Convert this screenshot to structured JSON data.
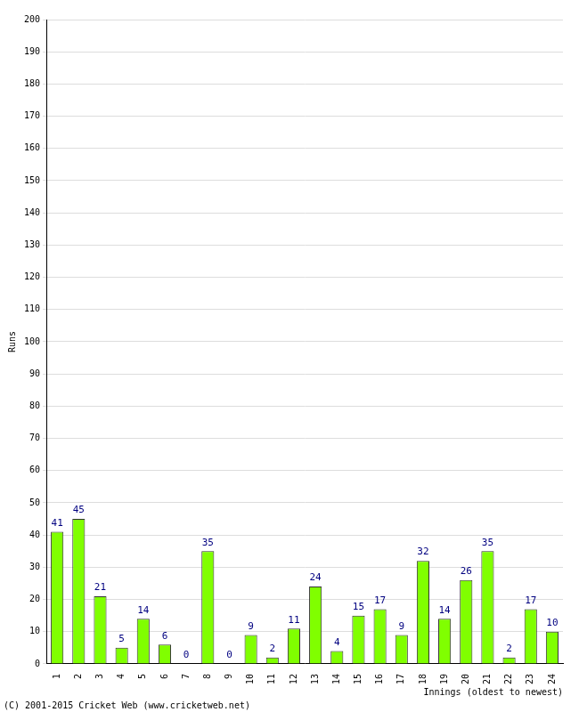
{
  "chart_data": {
    "type": "bar",
    "categories": [
      "1",
      "2",
      "3",
      "4",
      "5",
      "6",
      "7",
      "8",
      "9",
      "10",
      "11",
      "12",
      "13",
      "14",
      "15",
      "16",
      "17",
      "18",
      "19",
      "20",
      "21",
      "22",
      "23",
      "24"
    ],
    "values": [
      41,
      45,
      21,
      5,
      14,
      6,
      0,
      35,
      0,
      9,
      2,
      11,
      24,
      4,
      15,
      17,
      9,
      32,
      14,
      26,
      35,
      2,
      17,
      10
    ],
    "color": "#80ff00",
    "x_label": "Innings (oldest to newest)",
    "y_label": "Runs",
    "annotations": [
      "(C) 2001-2015 Cricket Web (www.cricketweb.net)"
    ],
    "ylim": [
      0,
      200
    ],
    "yticks": [
      0,
      10,
      20,
      30,
      40,
      50,
      60,
      70,
      80,
      90,
      100,
      110,
      120,
      130,
      140,
      150,
      160,
      170,
      180,
      190,
      200
    ],
    "grid": true,
    "data_labels": true
  }
}
